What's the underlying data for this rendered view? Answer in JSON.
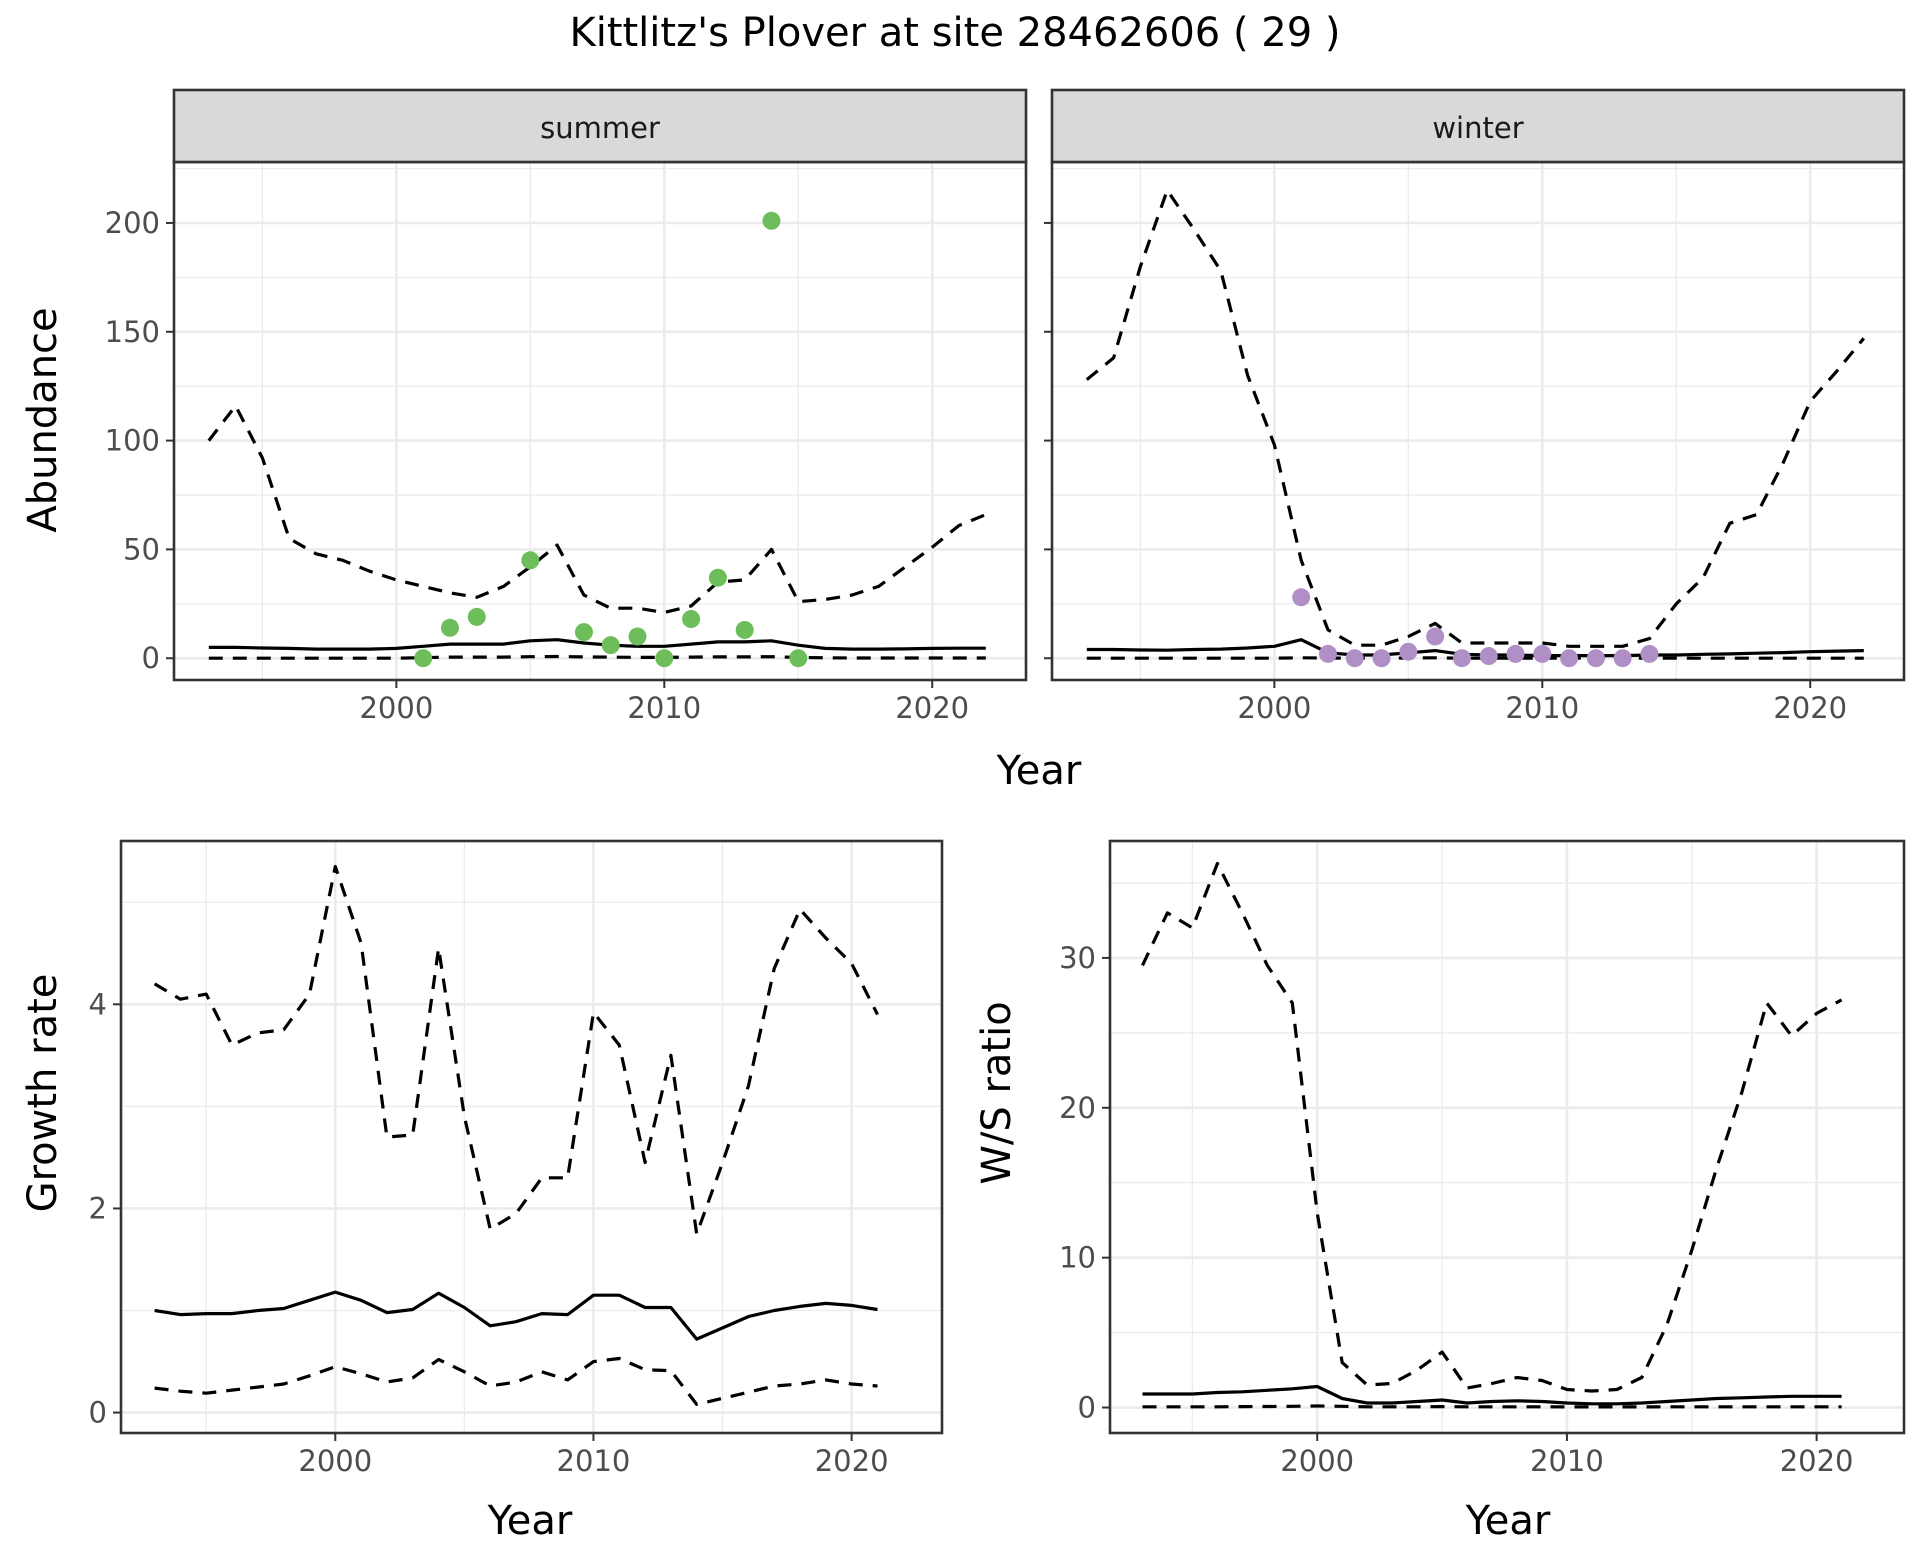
{
  "title": "Kittlitz's Plover at site 28462606 ( 29 )",
  "colors": {
    "summer_points": "#6dbd5a",
    "winter_points": "#b08fc7",
    "lines": "#000000",
    "strip": "#d9d9d9",
    "grid": "#ebebeb"
  },
  "chart_data": [
    {
      "type": "line",
      "facet": "summer",
      "ylabel": "Abundance",
      "xlabel": "Year",
      "xlim": [
        1991.7,
        2023.5
      ],
      "ylim": [
        -10,
        228
      ],
      "xticks": [
        2000,
        2010,
        2020
      ],
      "yticks": [
        0,
        50,
        100,
        150,
        200
      ],
      "grid": true,
      "series": [
        {
          "style": "dashed",
          "x": [
            1993,
            1994,
            1995,
            1996,
            1997,
            1998,
            1999,
            2000,
            2001,
            2002,
            2003,
            2004,
            2005,
            2006,
            2007,
            2008,
            2009,
            2010,
            2011,
            2012,
            2013,
            2014,
            2015,
            2016,
            2017,
            2018,
            2019,
            2020,
            2021,
            2022
          ],
          "y": [
            100,
            116,
            92,
            55,
            48,
            45,
            40,
            36,
            33,
            30,
            28,
            33,
            42,
            52,
            29,
            23,
            23,
            21,
            24,
            35,
            36,
            50,
            26,
            27,
            29,
            33,
            42,
            51,
            61,
            66
          ]
        },
        {
          "style": "solid",
          "x": [
            1993,
            1994,
            1995,
            1996,
            1997,
            1998,
            1999,
            2000,
            2001,
            2002,
            2003,
            2004,
            2005,
            2006,
            2007,
            2008,
            2009,
            2010,
            2011,
            2012,
            2013,
            2014,
            2015,
            2016,
            2017,
            2018,
            2019,
            2020,
            2021,
            2022
          ],
          "y": [
            5,
            5,
            4.7,
            4.5,
            4.2,
            4.2,
            4.2,
            4.5,
            5.5,
            6.5,
            6.5,
            6.5,
            8,
            8.5,
            7,
            6,
            5.5,
            5.5,
            6.5,
            7.5,
            7.5,
            8,
            6,
            4.5,
            4.2,
            4.2,
            4.3,
            4.5,
            4.6,
            4.6
          ]
        },
        {
          "style": "dashed",
          "x": [
            1993,
            1994,
            1995,
            1996,
            1997,
            1998,
            1999,
            2000,
            2001,
            2002,
            2003,
            2004,
            2005,
            2006,
            2007,
            2008,
            2009,
            2010,
            2011,
            2012,
            2013,
            2014,
            2015,
            2016,
            2017,
            2018,
            2019,
            2020,
            2021,
            2022
          ],
          "y": [
            0,
            0,
            0,
            0,
            0,
            0,
            0,
            0,
            0.3,
            0.5,
            0.5,
            0.5,
            0.7,
            0.8,
            0.6,
            0.5,
            0.4,
            0.4,
            0.5,
            0.6,
            0.6,
            0.7,
            0.4,
            0.2,
            0.1,
            0.1,
            0.1,
            0.1,
            0.1,
            0.1
          ]
        }
      ],
      "points": {
        "x": [
          2001,
          2002,
          2003,
          2005,
          2007,
          2008,
          2009,
          2010,
          2011,
          2012,
          2013,
          2014,
          2015
        ],
        "y": [
          0,
          14,
          19,
          45,
          12,
          6,
          10,
          0,
          18,
          37,
          13,
          201,
          0
        ]
      }
    },
    {
      "type": "line",
      "facet": "winter",
      "xlabel": "Year",
      "xlim": [
        1991.7,
        2023.5
      ],
      "ylim": [
        -10,
        228
      ],
      "xticks": [
        2000,
        2010,
        2020
      ],
      "yticks": [
        0,
        50,
        100,
        150,
        200
      ],
      "grid": true,
      "series": [
        {
          "style": "dashed",
          "x": [
            1993,
            1994,
            1995,
            1996,
            1997,
            1998,
            1999,
            2000,
            2001,
            2002,
            2003,
            2004,
            2005,
            2006,
            2007,
            2008,
            2009,
            2010,
            2011,
            2012,
            2013,
            2014,
            2015,
            2016,
            2017,
            2018,
            2019,
            2020,
            2021,
            2022
          ],
          "y": [
            128,
            138,
            180,
            215,
            197,
            178,
            130,
            98,
            45,
            13,
            6,
            6,
            10,
            16,
            7,
            7,
            7,
            7,
            5.5,
            5.5,
            5.5,
            9,
            25,
            37,
            62,
            66,
            90,
            118,
            132,
            147
          ]
        },
        {
          "style": "solid",
          "x": [
            1993,
            1994,
            1995,
            1996,
            1997,
            1998,
            1999,
            2000,
            2001,
            2002,
            2003,
            2004,
            2005,
            2006,
            2007,
            2008,
            2009,
            2010,
            2011,
            2012,
            2013,
            2014,
            2015,
            2016,
            2017,
            2018,
            2019,
            2020,
            2021,
            2022
          ],
          "y": [
            4,
            4,
            3.8,
            3.7,
            4,
            4.2,
            4.7,
            5.5,
            8.5,
            2.5,
            1.5,
            1.5,
            2.5,
            3.5,
            1.8,
            1.5,
            1.5,
            1.2,
            1.2,
            1.2,
            1.2,
            1.5,
            1.5,
            1.8,
            2,
            2.3,
            2.6,
            3,
            3.3,
            3.5
          ]
        },
        {
          "style": "dashed",
          "x": [
            1993,
            1994,
            1995,
            1996,
            1997,
            1998,
            1999,
            2000,
            2001,
            2002,
            2003,
            2004,
            2005,
            2006,
            2007,
            2008,
            2009,
            2010,
            2011,
            2012,
            2013,
            2014,
            2015,
            2016,
            2017,
            2018,
            2019,
            2020,
            2021,
            2022
          ],
          "y": [
            0,
            0,
            0,
            0,
            0,
            0,
            0,
            0,
            0.2,
            0.1,
            0,
            0,
            0.1,
            0.2,
            0,
            0,
            0,
            0,
            0,
            0,
            0,
            0,
            0,
            0,
            0,
            0,
            0,
            0,
            0,
            0
          ]
        }
      ],
      "points": {
        "x": [
          2001,
          2002,
          2003,
          2004,
          2005,
          2006,
          2007,
          2008,
          2009,
          2010,
          2011,
          2012,
          2013,
          2014
        ],
        "y": [
          28,
          2,
          0,
          0,
          3,
          10,
          0,
          1,
          2,
          2,
          0,
          0,
          0,
          2
        ]
      }
    },
    {
      "type": "line",
      "ylabel": "Growth rate",
      "xlabel": "Year",
      "xlim": [
        1991.7,
        2023.5
      ],
      "ylim": [
        -0.2,
        5.6
      ],
      "xticks": [
        2000,
        2010,
        2020
      ],
      "yticks": [
        0,
        2,
        4
      ],
      "grid": true,
      "series": [
        {
          "style": "dashed",
          "x": [
            1993,
            1994,
            1995,
            1996,
            1997,
            1998,
            1999,
            2000,
            2001,
            2002,
            2003,
            2004,
            2005,
            2006,
            2007,
            2008,
            2009,
            2010,
            2011,
            2012,
            2013,
            2014,
            2015,
            2016,
            2017,
            2018,
            2019,
            2020,
            2021
          ],
          "y": [
            4.2,
            4.05,
            4.1,
            3.6,
            3.72,
            3.75,
            4.1,
            5.35,
            4.6,
            2.7,
            2.72,
            4.55,
            2.9,
            1.8,
            1.95,
            2.3,
            2.3,
            3.92,
            3.6,
            2.45,
            3.5,
            1.75,
            2.45,
            3.2,
            4.35,
            4.93,
            4.65,
            4.4,
            3.9
          ]
        },
        {
          "style": "solid",
          "x": [
            1993,
            1994,
            1995,
            1996,
            1997,
            1998,
            1999,
            2000,
            2001,
            2002,
            2003,
            2004,
            2005,
            2006,
            2007,
            2008,
            2009,
            2010,
            2011,
            2012,
            2013,
            2014,
            2015,
            2016,
            2017,
            2018,
            2019,
            2020,
            2021
          ],
          "y": [
            1.0,
            0.96,
            0.97,
            0.97,
            1.0,
            1.02,
            1.1,
            1.18,
            1.1,
            0.98,
            1.01,
            1.17,
            1.03,
            0.85,
            0.89,
            0.97,
            0.96,
            1.15,
            1.15,
            1.03,
            1.03,
            0.72,
            0.83,
            0.94,
            1.0,
            1.04,
            1.07,
            1.05,
            1.01
          ]
        },
        {
          "style": "dashed",
          "x": [
            1993,
            1994,
            1995,
            1996,
            1997,
            1998,
            1999,
            2000,
            2001,
            2002,
            2003,
            2004,
            2005,
            2006,
            2007,
            2008,
            2009,
            2010,
            2011,
            2012,
            2013,
            2014,
            2015,
            2016,
            2017,
            2018,
            2019,
            2020,
            2021
          ],
          "y": [
            0.24,
            0.21,
            0.19,
            0.22,
            0.25,
            0.28,
            0.36,
            0.45,
            0.38,
            0.3,
            0.34,
            0.52,
            0.4,
            0.26,
            0.3,
            0.4,
            0.32,
            0.5,
            0.53,
            0.42,
            0.41,
            0.08,
            0.14,
            0.2,
            0.26,
            0.28,
            0.32,
            0.28,
            0.26
          ]
        }
      ]
    },
    {
      "type": "line",
      "ylabel": "W/S ratio",
      "xlabel": "Year",
      "xlim": [
        1991.7,
        2023.5
      ],
      "ylim": [
        -1.7,
        37.8
      ],
      "xticks": [
        2000,
        2010,
        2020
      ],
      "yticks": [
        0,
        10,
        20,
        30
      ],
      "grid": true,
      "series": [
        {
          "style": "dashed",
          "x": [
            1993,
            1994,
            1995,
            1996,
            1997,
            1998,
            1999,
            2000,
            2001,
            2002,
            2003,
            2004,
            2005,
            2006,
            2007,
            2008,
            2009,
            2010,
            2011,
            2012,
            2013,
            2014,
            2015,
            2016,
            2017,
            2018,
            2019,
            2020,
            2021
          ],
          "y": [
            29.5,
            33,
            32,
            36.3,
            33,
            29.5,
            27,
            13,
            3,
            1.5,
            1.6,
            2.5,
            3.7,
            1.3,
            1.6,
            2.0,
            1.8,
            1.2,
            1.1,
            1.2,
            2.0,
            5.5,
            10.5,
            16,
            21,
            27,
            24.8,
            26.3,
            27.2
          ]
        },
        {
          "style": "solid",
          "x": [
            1993,
            1994,
            1995,
            1996,
            1997,
            1998,
            1999,
            2000,
            2001,
            2002,
            2003,
            2004,
            2005,
            2006,
            2007,
            2008,
            2009,
            2010,
            2011,
            2012,
            2013,
            2014,
            2015,
            2016,
            2017,
            2018,
            2019,
            2020,
            2021
          ],
          "y": [
            0.9,
            0.9,
            0.9,
            1.0,
            1.05,
            1.15,
            1.25,
            1.4,
            0.6,
            0.3,
            0.3,
            0.4,
            0.5,
            0.3,
            0.4,
            0.45,
            0.4,
            0.3,
            0.25,
            0.25,
            0.3,
            0.4,
            0.5,
            0.6,
            0.65,
            0.7,
            0.75,
            0.75,
            0.75
          ]
        },
        {
          "style": "dashed",
          "x": [
            1993,
            1994,
            1995,
            1996,
            1997,
            1998,
            1999,
            2000,
            2001,
            2002,
            2003,
            2004,
            2005,
            2006,
            2007,
            2008,
            2009,
            2010,
            2011,
            2012,
            2013,
            2014,
            2015,
            2016,
            2017,
            2018,
            2019,
            2020,
            2021
          ],
          "y": [
            0.05,
            0.05,
            0.05,
            0.05,
            0.06,
            0.07,
            0.08,
            0.1,
            0.08,
            0.05,
            0.05,
            0.05,
            0.06,
            0.05,
            0.05,
            0.05,
            0.05,
            0.04,
            0.04,
            0.04,
            0.04,
            0.05,
            0.05,
            0.05,
            0.05,
            0.05,
            0.05,
            0.05,
            0.05
          ]
        }
      ]
    }
  ]
}
